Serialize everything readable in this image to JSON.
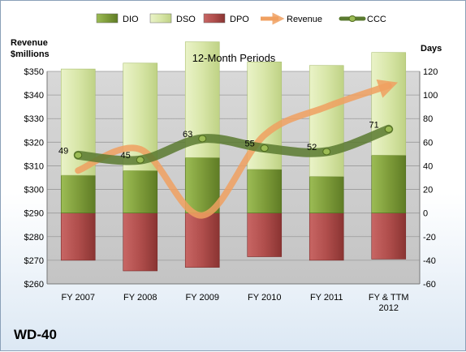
{
  "chart_data": {
    "type": "bar",
    "title": "12-Month Periods",
    "company": "WD-40",
    "categories": [
      "FY 2007",
      "FY 2008",
      "FY 2009",
      "FY 2010",
      "FY 2011",
      "FY & TTM 2012"
    ],
    "left_axis": {
      "label_lines": [
        "Revenue",
        "$millions"
      ],
      "min": 260,
      "max": 350,
      "step": 10,
      "tick_labels": [
        "$260",
        "$270",
        "$280",
        "$290",
        "$300",
        "$310",
        "$320",
        "$330",
        "$340",
        "$350"
      ]
    },
    "right_axis": {
      "label": "Days",
      "min": -60,
      "max": 120,
      "step": 20,
      "tick_labels": [
        "-60",
        "-40",
        "-20",
        "0",
        "20",
        "40",
        "60",
        "80",
        "100",
        "120"
      ]
    },
    "legend": {
      "position": "top",
      "entries": [
        "DIO",
        "DSO",
        "DPO",
        "Revenue",
        "CCC"
      ]
    },
    "series": [
      {
        "name": "DIO",
        "kind": "stacked-bar",
        "axis": "right",
        "values": [
          32,
          36,
          47,
          37,
          31,
          49
        ]
      },
      {
        "name": "DSO",
        "kind": "stacked-bar",
        "axis": "right",
        "values": [
          90,
          91,
          98,
          91,
          94,
          87
        ]
      },
      {
        "name": "DPO",
        "kind": "stacked-bar-negative",
        "axis": "right",
        "values": [
          -40,
          -49,
          -46,
          -37,
          -40,
          -39
        ]
      },
      {
        "name": "Revenue",
        "kind": "line-arrow",
        "axis": "left",
        "values": [
          308,
          317,
          289,
          323,
          335,
          344
        ]
      },
      {
        "name": "CCC",
        "kind": "line",
        "axis": "right",
        "values": [
          49,
          45,
          63,
          55,
          52,
          71
        ],
        "data_labels": [
          "49",
          "45",
          "63",
          "55",
          "52",
          "71"
        ]
      }
    ],
    "colors": {
      "DIO": "#7e9c3a",
      "DSO": "#d8e6a8",
      "DPO": "#b04e4c",
      "Revenue": "#f0a060",
      "CCC": "#5a7a30",
      "plot_bg": "#cfcfcf"
    },
    "grid": true
  }
}
